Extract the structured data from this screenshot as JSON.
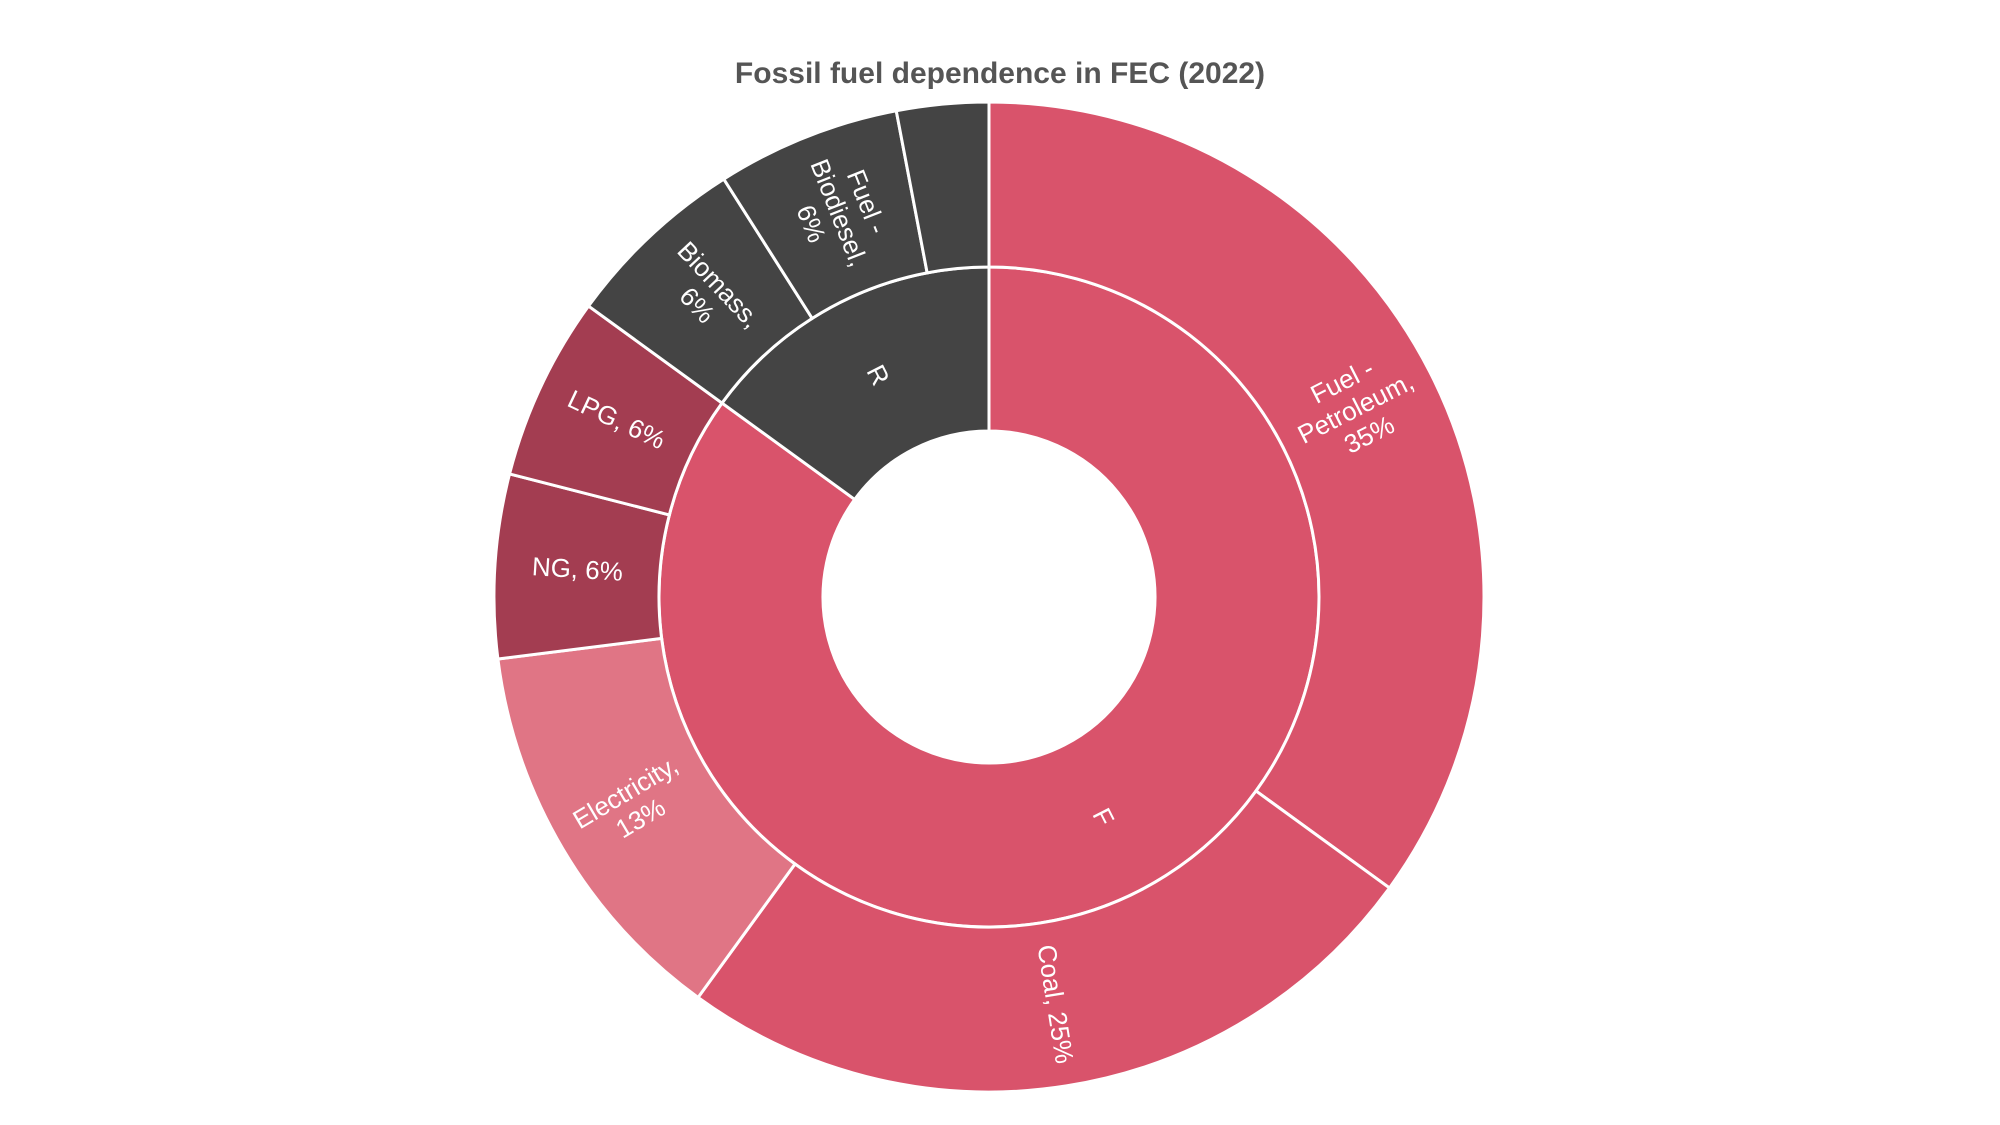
{
  "chart_data": {
    "type": "sunburst",
    "title": "Fossil fuel dependence in FEC (2022)",
    "inner": {
      "categories": [
        "Fossil fuel",
        "Renewable"
      ],
      "values": [
        85,
        15
      ],
      "colors": [
        "#d9536b",
        "#444444"
      ]
    },
    "outer": {
      "labels": [
        [
          "Fuel -",
          "Petroleum,",
          "35%"
        ],
        [
          "Coal, 25%"
        ],
        [
          "Electricity,",
          "13%"
        ],
        [
          "NG, 6%"
        ],
        [
          "LPG, 6%"
        ],
        [
          "Biomass,",
          "6%"
        ],
        [
          "Fuel -",
          "Biodiesel,",
          "6%"
        ],
        null
      ],
      "values": [
        35,
        25,
        13,
        6,
        6,
        6,
        6,
        3
      ],
      "colors": [
        "#d9536b",
        "#d9536b",
        "#e07585",
        "#a33d51",
        "#a33d51",
        "#444444",
        "#444444",
        "#444444"
      ]
    }
  }
}
